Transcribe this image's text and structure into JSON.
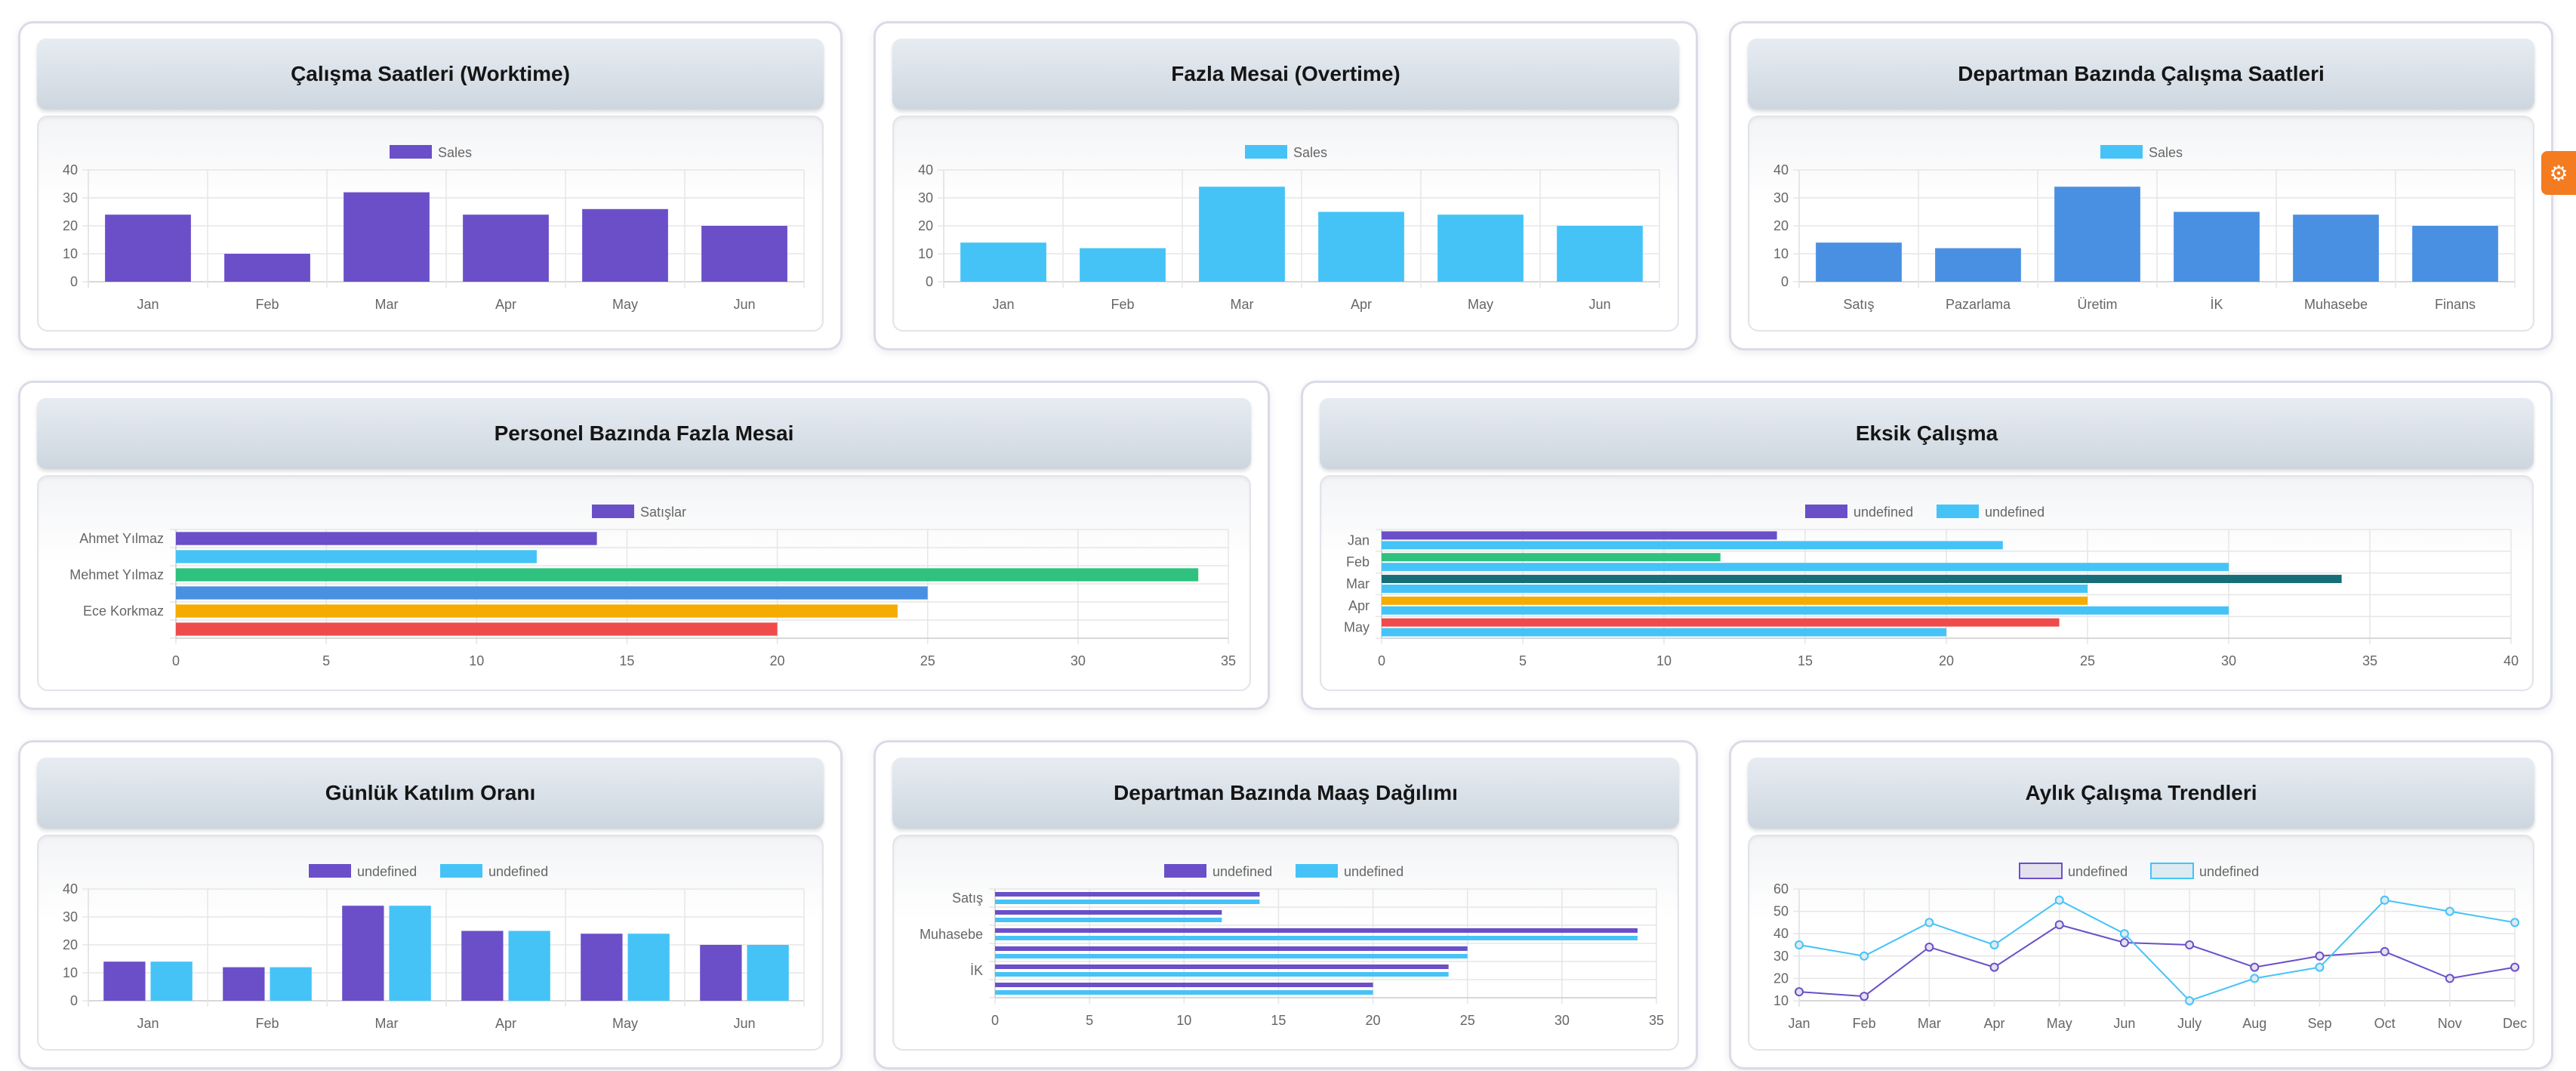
{
  "settings": {
    "icon": "gear-icon"
  },
  "charts": [
    {
      "title": "Çalışma Saatleri (Worktime)",
      "chart_data": {
        "type": "bar",
        "orientation": "vertical",
        "categories": [
          "Jan",
          "Feb",
          "Mar",
          "Apr",
          "May",
          "Jun"
        ],
        "ylim": [
          0,
          40
        ],
        "ticks": [
          0,
          10,
          20,
          30,
          40
        ],
        "legend_position": "top",
        "grid": true,
        "series": [
          {
            "name": "Sales",
            "values": [
              24,
              10,
              32,
              24,
              26,
              20
            ],
            "color": "#6a4fc9"
          }
        ]
      }
    },
    {
      "title": "Fazla Mesai (Overtime)",
      "chart_data": {
        "type": "bar",
        "orientation": "vertical",
        "categories": [
          "Jan",
          "Feb",
          "Mar",
          "Apr",
          "May",
          "Jun"
        ],
        "ylim": [
          0,
          40
        ],
        "ticks": [
          0,
          10,
          20,
          30,
          40
        ],
        "legend_position": "top",
        "grid": true,
        "series": [
          {
            "name": "Sales",
            "values": [
              14,
              12,
              34,
              25,
              24,
              20
            ],
            "color": "#45c3f7"
          }
        ]
      }
    },
    {
      "title": "Departman Bazında Çalışma Saatleri",
      "chart_data": {
        "type": "bar",
        "orientation": "vertical",
        "categories": [
          "Satış",
          "Pazarlama",
          "Üretim",
          "İK",
          "Muhasebe",
          "Finans"
        ],
        "ylim": [
          0,
          40
        ],
        "ticks": [
          0,
          10,
          20,
          30,
          40
        ],
        "legend_position": "top",
        "grid": true,
        "series": [
          {
            "name": "Sales",
            "values": [
              14,
              12,
              34,
              25,
              24,
              20
            ],
            "color": "#4a90e2",
            "legend_color": "#45c3f7"
          }
        ]
      }
    },
    {
      "title": "Personel Bazında Fazla Mesai",
      "chart_data": {
        "type": "bar",
        "orientation": "horizontal",
        "categories": [
          "Ahmet Yılmaz",
          "",
          "Mehmet Yılmaz",
          "",
          "Ece Korkmaz",
          ""
        ],
        "xlim": [
          0,
          35
        ],
        "ticks": [
          0,
          5,
          10,
          15,
          20,
          25,
          30,
          35
        ],
        "legend_position": "top",
        "grid": true,
        "series": [
          {
            "name": "Satışlar",
            "values": [
              14,
              12,
              34,
              25,
              24,
              20
            ],
            "color": "#6a4fc9",
            "bar_colors": [
              "#6a4fc9",
              "#45c3f7",
              "#2ec27e",
              "#4a90e2",
              "#f5ab00",
              "#ef4b4b"
            ]
          }
        ]
      }
    },
    {
      "title": "Eksik Çalışma",
      "chart_data": {
        "type": "bar",
        "orientation": "horizontal",
        "categories": [
          "Jan",
          "Feb",
          "Mar",
          "Apr",
          "May"
        ],
        "xlim": [
          0,
          40
        ],
        "ticks": [
          0,
          5,
          10,
          15,
          20,
          25,
          30,
          35,
          40
        ],
        "legend_position": "top",
        "grid": true,
        "series": [
          {
            "name": "undefined",
            "values": [
              14,
              12,
              34,
              25,
              24
            ],
            "color": "#6a4fc9",
            "bar_colors": [
              "#6a4fc9",
              "#2ec27e",
              "#176e78",
              "#f5ab00",
              "#ef4b4b"
            ]
          },
          {
            "name": "undefined",
            "values": [
              22,
              30,
              25,
              30,
              20
            ],
            "color": "#45c3f7"
          }
        ]
      }
    },
    {
      "title": "Günlük Katılım Oranı",
      "chart_data": {
        "type": "bar",
        "orientation": "vertical",
        "categories": [
          "Jan",
          "Feb",
          "Mar",
          "Apr",
          "May",
          "Jun"
        ],
        "ylim": [
          0,
          40
        ],
        "ticks": [
          0,
          10,
          20,
          30,
          40
        ],
        "legend_position": "top",
        "grid": true,
        "series": [
          {
            "name": "undefined",
            "values": [
              14,
              12,
              34,
              25,
              24,
              20
            ],
            "color": "#6a4fc9"
          },
          {
            "name": "undefined",
            "values": [
              14,
              12,
              34,
              25,
              24,
              20
            ],
            "color": "#45c3f7"
          }
        ]
      }
    },
    {
      "title": "Departman Bazında Maaş Dağılımı",
      "chart_data": {
        "type": "bar",
        "orientation": "horizontal",
        "categories": [
          "Satış",
          "",
          "Muhasebe",
          "",
          "İK",
          ""
        ],
        "xlim": [
          0,
          35
        ],
        "ticks": [
          0,
          5,
          10,
          15,
          20,
          25,
          30,
          35
        ],
        "legend_position": "top",
        "grid": true,
        "series": [
          {
            "name": "undefined",
            "values": [
              14,
              12,
              34,
              25,
              24,
              20
            ],
            "color": "#6a4fc9"
          },
          {
            "name": "undefined",
            "values": [
              14,
              12,
              34,
              25,
              24,
              20
            ],
            "color": "#45c3f7"
          }
        ]
      }
    },
    {
      "title": "Aylık Çalışma Trendleri",
      "chart_data": {
        "type": "line",
        "categories": [
          "Jan",
          "Feb",
          "Mar",
          "Apr",
          "May",
          "Jun",
          "July",
          "Aug",
          "Sep",
          "Oct",
          "Nov",
          "Dec"
        ],
        "ylim": [
          10,
          60
        ],
        "ticks": [
          10,
          20,
          30,
          40,
          50,
          60
        ],
        "legend_position": "top",
        "grid": true,
        "series": [
          {
            "name": "undefined",
            "values": [
              14,
              12,
              34,
              25,
              44,
              36,
              35,
              25,
              30,
              32,
              20,
              25
            ],
            "color": "#6a4fc9",
            "fill": "#e4e1ee"
          },
          {
            "name": "undefined",
            "values": [
              35,
              30,
              45,
              35,
              55,
              40,
              10,
              20,
              25,
              55,
              50,
              45
            ],
            "color": "#45c3f7",
            "fill": "#dceaf2"
          }
        ]
      }
    }
  ]
}
